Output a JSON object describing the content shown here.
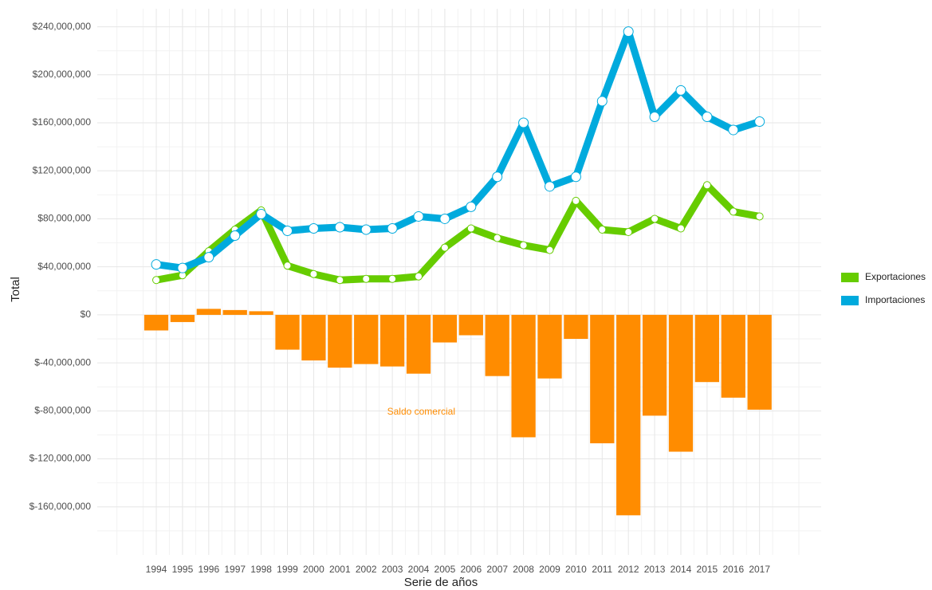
{
  "chart_data": {
    "type": "line",
    "x_label": "Total",
    "xlabel": "Serie de años",
    "ylabel": "Total",
    "x": [
      1994,
      1995,
      1996,
      1997,
      1998,
      1999,
      2000,
      2001,
      2002,
      2003,
      2004,
      2005,
      2006,
      2007,
      2008,
      2009,
      2010,
      2011,
      2012,
      2013,
      2014,
      2015,
      2016,
      2017
    ],
    "xlim": [
      1991.75,
      2019.35
    ],
    "xticks": [
      1994,
      1995,
      1996,
      1997,
      1998,
      1999,
      2000,
      2001,
      2002,
      2003,
      2004,
      2005,
      2006,
      2007,
      2008,
      2009,
      2010,
      2011,
      2012,
      2013,
      2014,
      2015,
      2016,
      2017
    ],
    "ylim": [
      -200000000,
      255000000
    ],
    "yticks": [
      {
        "value": -160000000,
        "label": "$-160,000,000"
      },
      {
        "value": -120000000,
        "label": "$-120,000,000"
      },
      {
        "value": -80000000,
        "label": "$-80,000,000"
      },
      {
        "value": -40000000,
        "label": "$-40,000,000"
      },
      {
        "value": 0,
        "label": "$0"
      },
      {
        "value": 40000000,
        "label": "$40,000,000"
      },
      {
        "value": 80000000,
        "label": "$80,000,000"
      },
      {
        "value": 120000000,
        "label": "$120,000,000"
      },
      {
        "value": 160000000,
        "label": "$160,000,000"
      },
      {
        "value": 200000000,
        "label": "$200,000,000"
      },
      {
        "value": 240000000,
        "label": "$240,000,000"
      }
    ],
    "grid": true,
    "legend": "right",
    "series": [
      {
        "name": "Exportaciones",
        "color": "#66cc00",
        "values": [
          29000000,
          33000000,
          53000000,
          71000000,
          87000000,
          41000000,
          34000000,
          29000000,
          30000000,
          30000000,
          32000000,
          56000000,
          72000000,
          64000000,
          58000000,
          54000000,
          95000000,
          71000000,
          69000000,
          80000000,
          72000000,
          108000000,
          86000000,
          82000000
        ]
      },
      {
        "name": "Importaciones",
        "color": "#00aadd",
        "values": [
          42000000,
          39000000,
          48000000,
          66000000,
          84000000,
          70000000,
          72000000,
          73000000,
          71000000,
          72000000,
          82000000,
          80000000,
          90000000,
          115000000,
          160000000,
          107000000,
          115000000,
          178000000,
          236000000,
          165000000,
          187000000,
          165000000,
          154000000,
          161000000
        ]
      }
    ],
    "bars": {
      "name": "Saldo comercial",
      "color": "#ff8c00",
      "values": [
        -13000000,
        -6000000,
        5000000,
        4000000,
        3000000,
        -29000000,
        -38000000,
        -44000000,
        -41000000,
        -43000000,
        -49000000,
        -23000000,
        -17000000,
        -51000000,
        -102000000,
        -53000000,
        -20000000,
        -107000000,
        -167000000,
        -84000000,
        -114000000,
        -56000000,
        -69000000,
        -79000000
      ]
    }
  }
}
